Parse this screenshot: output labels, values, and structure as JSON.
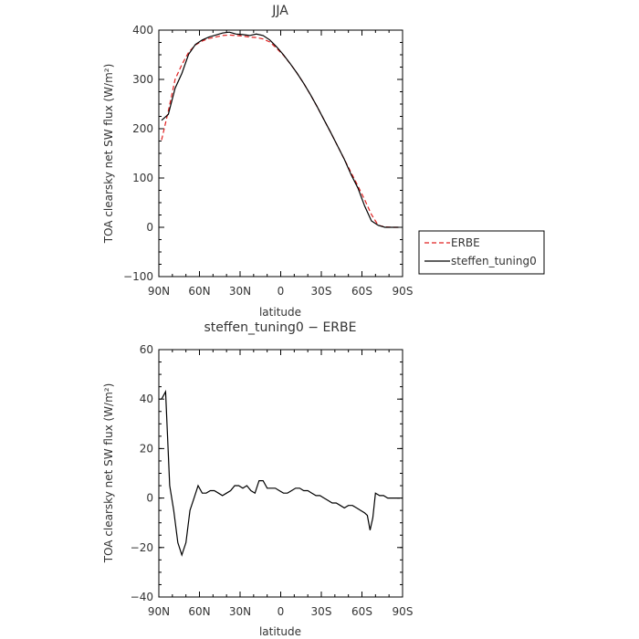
{
  "chart_data": [
    {
      "type": "line",
      "title": "JJA",
      "xlabel": "latitude",
      "ylabel": "TOA clearsky net SW flux (W/m²)",
      "xlim": [
        90,
        -90
      ],
      "ylim": [
        -100,
        400
      ],
      "xticks": [
        90,
        60,
        30,
        0,
        -30,
        -60,
        -90
      ],
      "xticklabels": [
        "90N",
        "60N",
        "30N",
        "0",
        "30S",
        "60S",
        "90S"
      ],
      "yticks": [
        -100,
        0,
        100,
        200,
        300,
        400
      ],
      "yticklabels": [
        "−100",
        "0",
        "100",
        "200",
        "300",
        "400"
      ],
      "grid": false,
      "legend": "right",
      "series": [
        {
          "name": "ERBE",
          "color": "#e02020",
          "dash": "dashed",
          "x": [
            88,
            83,
            78,
            73,
            68,
            63,
            58,
            53,
            48,
            43,
            38,
            33,
            28,
            23,
            18,
            13,
            8,
            3,
            -2,
            -7,
            -12,
            -17,
            -22,
            -27,
            -32,
            -37,
            -42,
            -47,
            -52,
            -57,
            -62,
            -67,
            -72,
            -77,
            -82,
            -87
          ],
          "y": [
            177,
            236,
            300,
            330,
            355,
            370,
            378,
            383,
            386,
            389,
            390,
            389,
            388,
            386,
            385,
            382,
            376,
            363,
            349,
            332,
            313,
            292,
            269,
            244,
            218,
            192,
            165,
            138,
            111,
            84,
            56,
            26,
            4,
            1,
            0,
            0
          ]
        },
        {
          "name": "steffen_tuning0",
          "color": "#000000",
          "dash": "solid",
          "x": [
            88,
            83,
            78,
            73,
            68,
            63,
            58,
            53,
            48,
            43,
            38,
            33,
            28,
            23,
            18,
            13,
            8,
            3,
            -2,
            -7,
            -12,
            -17,
            -22,
            -27,
            -32,
            -37,
            -42,
            -47,
            -52,
            -57,
            -62,
            -67,
            -72,
            -77,
            -82,
            -87
          ],
          "y": [
            217,
            229,
            282,
            312,
            351,
            371,
            380,
            386,
            390,
            394,
            396,
            392,
            391,
            389,
            392,
            389,
            380,
            366,
            350,
            332,
            313,
            292,
            269,
            244,
            218,
            192,
            165,
            138,
            107,
            80,
            43,
            13,
            4,
            0,
            0,
            0
          ]
        }
      ]
    },
    {
      "type": "line",
      "title": "steffen_tuning0 − ERBE",
      "xlabel": "latitude",
      "ylabel": "TOA clearsky net SW flux (W/m²)",
      "xlim": [
        90,
        -90
      ],
      "ylim": [
        -40,
        60
      ],
      "xticks": [
        90,
        60,
        30,
        0,
        -30,
        -60,
        -90
      ],
      "xticklabels": [
        "90N",
        "60N",
        "30N",
        "0",
        "30S",
        "60S",
        "90S"
      ],
      "yticks": [
        -40,
        -20,
        0,
        20,
        40,
        60
      ],
      "yticklabels": [
        "−40",
        "−20",
        "0",
        "20",
        "40",
        "60"
      ],
      "grid": false,
      "series": [
        {
          "name": "steffen_tuning0",
          "color": "#000000",
          "dash": "solid",
          "x": [
            88,
            85,
            82,
            79,
            76,
            73,
            70,
            67,
            64,
            61,
            58,
            55,
            52,
            49,
            46,
            43,
            40,
            37,
            34,
            31,
            28,
            25,
            22,
            19,
            16,
            13,
            10,
            7,
            4,
            1,
            -2,
            -5,
            -8,
            -11,
            -14,
            -17,
            -20,
            -23,
            -26,
            -29,
            -32,
            -35,
            -38,
            -41,
            -44,
            -47,
            -50,
            -53,
            -56,
            -59,
            -62,
            -64,
            -66,
            -68,
            -70,
            -73,
            -76,
            -79,
            -82,
            -85,
            -88
          ],
          "y": [
            40,
            43,
            5,
            -5,
            -18,
            -23,
            -18,
            -5,
            0,
            5,
            2,
            2,
            3,
            3,
            2,
            1,
            2,
            3,
            5,
            5,
            4,
            5,
            3,
            2,
            7,
            7,
            4,
            4,
            4,
            3,
            2,
            2,
            3,
            4,
            4,
            3,
            3,
            2,
            1,
            1,
            0,
            -1,
            -2,
            -2,
            -3,
            -4,
            -3,
            -3,
            -4,
            -5,
            -6,
            -7,
            -13,
            -8,
            2,
            1,
            1,
            0,
            0,
            0,
            0
          ]
        }
      ]
    }
  ]
}
